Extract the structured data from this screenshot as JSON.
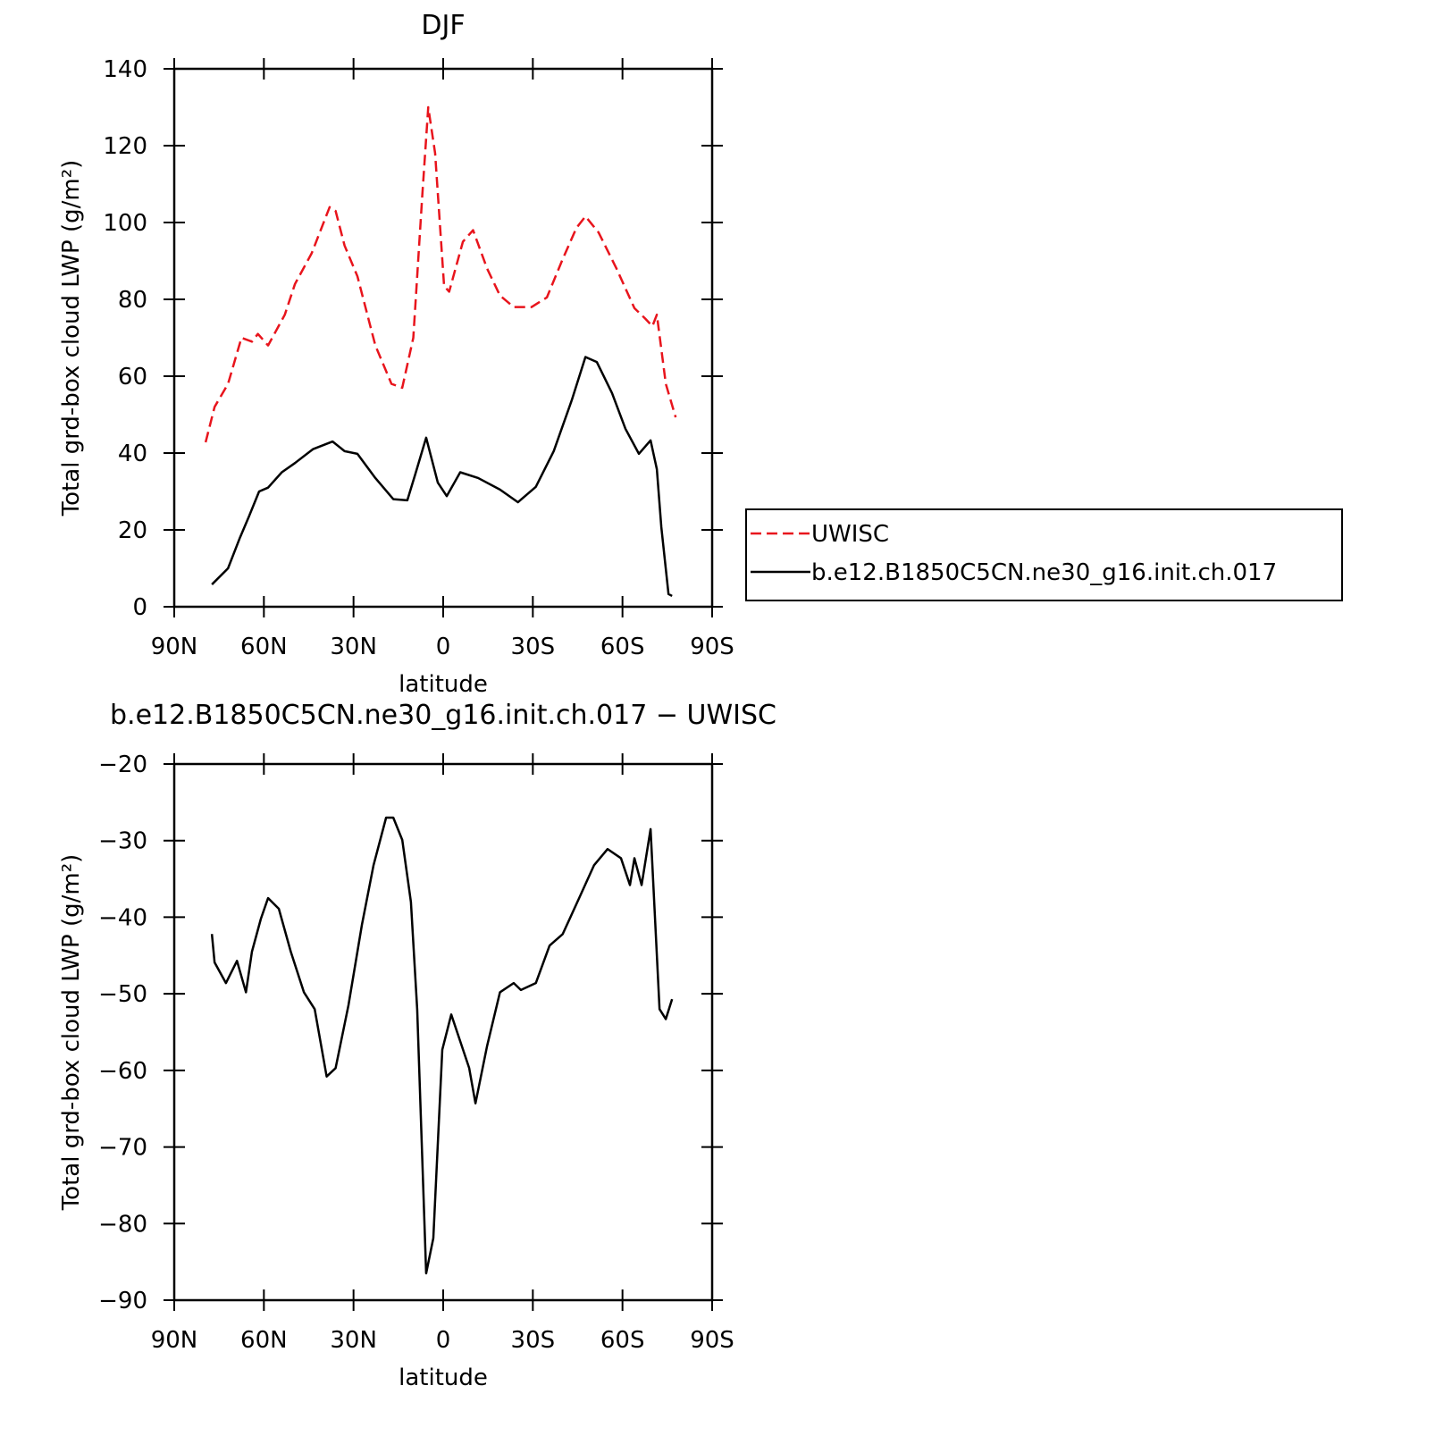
{
  "chart_data": [
    {
      "type": "line",
      "title": "DJF",
      "xlabel": "latitude",
      "ylabel": "Total grd-box cloud LWP (g/m²)",
      "xlim": [
        90,
        -90
      ],
      "ylim": [
        0,
        140
      ],
      "xticks": [
        {
          "value": 90,
          "label": "90N"
        },
        {
          "value": 60,
          "label": "60N"
        },
        {
          "value": 30,
          "label": "30N"
        },
        0,
        {
          "value": -30,
          "label": "30S"
        },
        {
          "value": -60,
          "label": "60S"
        },
        {
          "value": -90,
          "label": "90S"
        }
      ],
      "yticks": [
        0,
        20,
        40,
        60,
        80,
        100,
        120,
        140
      ],
      "legend": "right",
      "series": [
        {
          "name": "UWISC",
          "color": "#e8141c",
          "style": "dashed",
          "x": [
            79.5,
            76.5,
            72,
            67.5,
            64,
            62,
            58.6,
            53,
            49.6,
            44,
            38,
            36,
            33,
            28.7,
            22.7,
            17.3,
            13.7,
            10,
            7,
            5,
            2.7,
            -0.3,
            -2,
            -6.6,
            -10,
            -14.7,
            -19,
            -23.6,
            -29.6,
            -34.7,
            -40,
            -44.6,
            -47.6,
            -52,
            -58,
            -64,
            -67.6,
            -70,
            -71.5,
            -74.5,
            -77.8
          ],
          "values": [
            42.8,
            52,
            58,
            70,
            69,
            71,
            68,
            76,
            84,
            92,
            104,
            103,
            94,
            86,
            68,
            58,
            57,
            70,
            107,
            130,
            118,
            83.5,
            82,
            95,
            98,
            88,
            81,
            78,
            78,
            80.5,
            90.5,
            98.6,
            101.6,
            97.4,
            88,
            77.7,
            75,
            73,
            76,
            58,
            49.3
          ]
        },
        {
          "name": "b.e12.B1850C5CN.ne30_g16.init.ch.017",
          "color": "#000000",
          "style": "solid",
          "x": [
            77.4,
            72,
            68,
            65,
            61.6,
            58.6,
            54,
            49.6,
            43.6,
            37,
            33,
            28.7,
            22.7,
            16.7,
            12,
            9.3,
            5.7,
            1.8,
            -1.2,
            -5.7,
            -11.7,
            -19,
            -25,
            -31,
            -37,
            -43,
            -47.6,
            -51.4,
            -56.5,
            -61,
            -65.5,
            -69.4,
            -71.5,
            -73,
            -75.4,
            -76.6
          ],
          "values": [
            5.8,
            10,
            18,
            23.5,
            30,
            31,
            35,
            37.4,
            41,
            43,
            40.5,
            39.8,
            33.5,
            28,
            27.7,
            34.6,
            44,
            32.3,
            28.8,
            35,
            33.5,
            30.5,
            27.2,
            31.2,
            40.5,
            53.7,
            65,
            63.7,
            55.6,
            46.3,
            39.8,
            43.3,
            35.8,
            20.7,
            3.3,
            2.8
          ]
        }
      ]
    },
    {
      "type": "line",
      "title": "b.e12.B1850C5CN.ne30_g16.init.ch.017 − UWISC",
      "xlabel": "latitude",
      "ylabel": "Total grd-box cloud LWP (g/m²)",
      "xlim": [
        90,
        -90
      ],
      "ylim": [
        -90,
        -20
      ],
      "xticks": [
        {
          "value": 90,
          "label": "90N"
        },
        {
          "value": 60,
          "label": "60N"
        },
        {
          "value": 30,
          "label": "30N"
        },
        0,
        {
          "value": -30,
          "label": "30S"
        },
        {
          "value": -60,
          "label": "60S"
        },
        {
          "value": -90,
          "label": "90S"
        }
      ],
      "yticks": [
        {
          "value": -90,
          "label": "−90"
        },
        {
          "value": -80,
          "label": "−80"
        },
        {
          "value": -70,
          "label": "−70"
        },
        {
          "value": -60,
          "label": "−60"
        },
        {
          "value": -50,
          "label": "−50"
        },
        {
          "value": -40,
          "label": "−40"
        },
        {
          "value": -30,
          "label": "−30"
        },
        {
          "value": -20,
          "label": "−20"
        }
      ],
      "series": [
        {
          "color": "#000000",
          "style": "solid",
          "x": [
            77.4,
            76.5,
            72.7,
            69,
            66,
            64,
            61,
            58.6,
            55,
            51,
            46.6,
            43,
            39,
            36,
            31.7,
            27.2,
            23.3,
            19.1,
            16.7,
            13.7,
            10.8,
            8.7,
            5.7,
            3.3,
            0.3,
            -2.7,
            -5.7,
            -8.7,
            -10.8,
            -14.7,
            -19,
            -23.6,
            -26,
            -31,
            -35.6,
            -40,
            -45.5,
            -50.5,
            -55,
            -59.5,
            -62.5,
            -64,
            -66.4,
            -69.4,
            -72.4,
            -74.5,
            -76.6
          ],
          "values": [
            -42.2,
            -45.9,
            -48.6,
            -45.7,
            -49.8,
            -44.5,
            -40.2,
            -37.5,
            -38.9,
            -44.5,
            -49.8,
            -52,
            -60.8,
            -59.7,
            -51.5,
            -41,
            -33.2,
            -27,
            -27,
            -29.9,
            -38,
            -52,
            -86.5,
            -81.9,
            -57.3,
            -52.7,
            -56.2,
            -59.7,
            -64.3,
            -56.8,
            -49.8,
            -48.6,
            -49.5,
            -48.6,
            -43.7,
            -42.2,
            -37.5,
            -33.2,
            -31.1,
            -32.3,
            -35.8,
            -32.3,
            -35.8,
            -28.5,
            -52,
            -53.3,
            -50.7
          ]
        }
      ]
    }
  ]
}
